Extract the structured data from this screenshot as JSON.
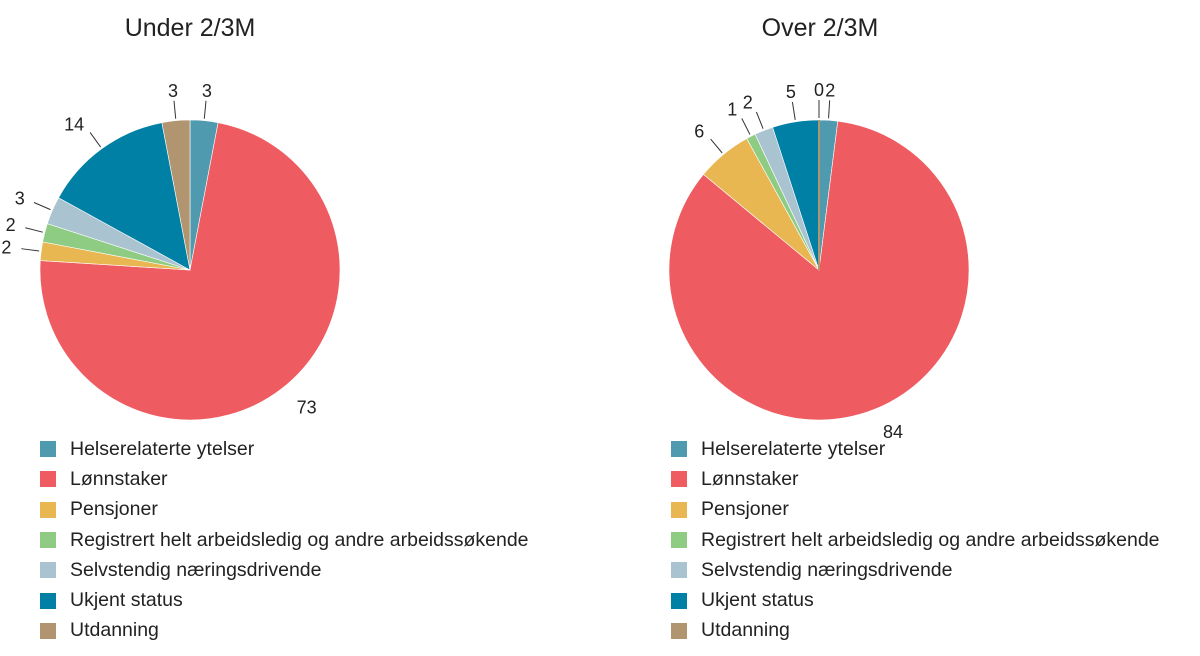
{
  "colors": {
    "Helserelaterte ytelser": "#4f9aae",
    "Lønnstaker": "#ee5c62",
    "Pensjoner": "#e9b751",
    "Registrert helt arbeidsledig og andre arbeidssøkende": "#8ecc84",
    "Selvstendig næringsdrivende": "#a9c3d0",
    "Ukjent status": "#0080a5",
    "Utdanning": "#b19470"
  },
  "chart_data": [
    {
      "type": "pie",
      "title": "Under 2/3M",
      "categories": [
        "Helserelaterte ytelser",
        "Lønnstaker",
        "Pensjoner",
        "Registrert helt arbeidsledig og andre arbeidssøkende",
        "Selvstendig næringsdrivende",
        "Ukjent status",
        "Utdanning"
      ],
      "values": [
        3,
        73,
        2,
        2,
        3,
        14,
        3
      ],
      "legend_position": "bottom"
    },
    {
      "type": "pie",
      "title": "Over 2/3M",
      "categories": [
        "Helserelaterte ytelser",
        "Lønnstaker",
        "Pensjoner",
        "Registrert helt arbeidsledig og andre arbeidssøkende",
        "Selvstendig næringsdrivende",
        "Ukjent status",
        "Utdanning"
      ],
      "values": [
        2,
        84,
        6,
        1,
        2,
        5,
        0
      ],
      "legend_position": "bottom"
    }
  ]
}
